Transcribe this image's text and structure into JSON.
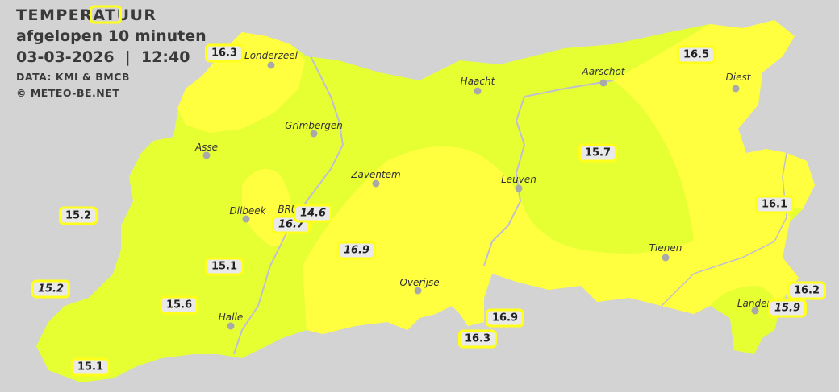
{
  "header": {
    "title": "TEMPERATUUR",
    "subtitle": "afgelopen 10 minuten",
    "datetime": "03-03-2026  |  12:40",
    "source": "DATA: KMI & BMCB",
    "copyright": "© METEO-BE.NET"
  },
  "colors": {
    "background": "#d3d3d3",
    "zone_15": "#e6ff33",
    "zone_16": "#ffff40",
    "badge_border": "#ffff1a"
  },
  "towns": [
    {
      "name": "Londerzeel"
    },
    {
      "name": "Haacht"
    },
    {
      "name": "Aarschot"
    },
    {
      "name": "Diest"
    },
    {
      "name": "Grimbergen"
    },
    {
      "name": "Asse"
    },
    {
      "name": "Zaventem"
    },
    {
      "name": "Leuven"
    },
    {
      "name": "Dilbeek"
    },
    {
      "name": "BRU"
    },
    {
      "name": "Tienen"
    },
    {
      "name": "Overijse"
    },
    {
      "name": "Halle"
    },
    {
      "name": "Landen"
    }
  ],
  "readings": [
    {
      "value": "16.3",
      "italic": false
    },
    {
      "value": "16.5",
      "italic": false
    },
    {
      "value": "15.7",
      "italic": false
    },
    {
      "value": "16.1",
      "italic": false
    },
    {
      "value": "15.2",
      "italic": false
    },
    {
      "value": "14.6",
      "italic": true
    },
    {
      "value": "16.7",
      "italic": true
    },
    {
      "value": "16.9",
      "italic": true
    },
    {
      "value": "15.1",
      "italic": false
    },
    {
      "value": "15.2",
      "italic": true
    },
    {
      "value": "15.6",
      "italic": false
    },
    {
      "value": "16.9",
      "italic": false
    },
    {
      "value": "16.3",
      "italic": false
    },
    {
      "value": "16.2",
      "italic": false
    },
    {
      "value": "15.9",
      "italic": true
    },
    {
      "value": "15.1",
      "italic": false
    }
  ]
}
